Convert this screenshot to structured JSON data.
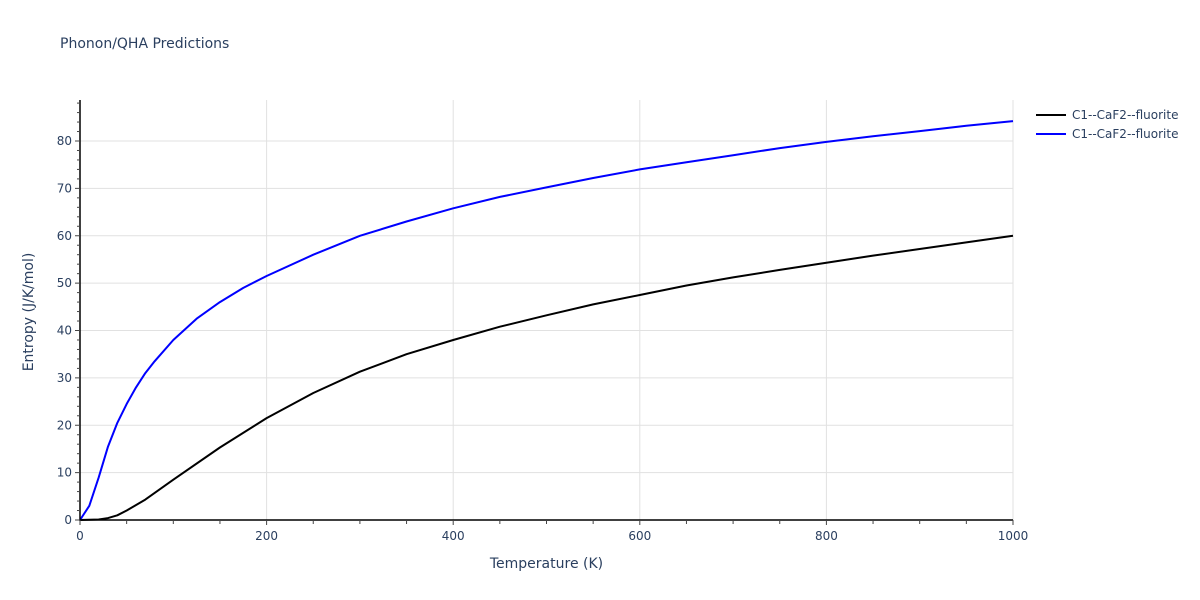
{
  "title": "Phonon/QHA Predictions",
  "legend": [
    {
      "label": "C1--CaF2--fluorite",
      "color": "#000000"
    },
    {
      "label": "C1--CaF2--fluorite",
      "color": "#0000ff"
    }
  ],
  "axes": {
    "xlabel": "Temperature (K)",
    "ylabel": "Entropy (J/K/mol)",
    "xticks": [
      "0",
      "200",
      "400",
      "600",
      "800",
      "1000"
    ],
    "yticks": [
      "0",
      "10",
      "20",
      "30",
      "40",
      "50",
      "60",
      "70",
      "80"
    ]
  },
  "chart_data": {
    "type": "line",
    "title": "Phonon/QHA Predictions",
    "xlabel": "Temperature (K)",
    "ylabel": "Entropy (J/K/mol)",
    "xlim": [
      0,
      1000
    ],
    "ylim": [
      0,
      88.5
    ],
    "grid": true,
    "legend_position": "right-top",
    "series": [
      {
        "name": "C1--CaF2--fluorite",
        "color": "#000000",
        "x": [
          0,
          20,
          30,
          40,
          50,
          70,
          100,
          150,
          200,
          250,
          300,
          350,
          400,
          450,
          500,
          550,
          600,
          650,
          700,
          750,
          800,
          850,
          900,
          950,
          1000
        ],
        "y": [
          0,
          0.1,
          0.4,
          1,
          2,
          4.3,
          8.5,
          15.3,
          21.5,
          26.8,
          31.3,
          35,
          38,
          40.8,
          43.2,
          45.5,
          47.5,
          49.5,
          51.2,
          52.8,
          54.3,
          55.8,
          57.2,
          58.6,
          60
        ]
      },
      {
        "name": "C1--CaF2--fluorite",
        "color": "#0000ff",
        "x": [
          0,
          10,
          20,
          30,
          40,
          50,
          60,
          70,
          80,
          100,
          125,
          150,
          175,
          200,
          250,
          300,
          350,
          400,
          450,
          500,
          550,
          600,
          650,
          700,
          750,
          800,
          850,
          900,
          950,
          1000
        ],
        "y": [
          0,
          3,
          9,
          15.5,
          20.5,
          24.5,
          28,
          31,
          33.5,
          38,
          42.5,
          46,
          49,
          51.5,
          56,
          60,
          63,
          65.8,
          68.2,
          70.2,
          72.2,
          74,
          75.5,
          77,
          78.5,
          79.8,
          81,
          82.1,
          83.2,
          84.2
        ]
      }
    ]
  }
}
